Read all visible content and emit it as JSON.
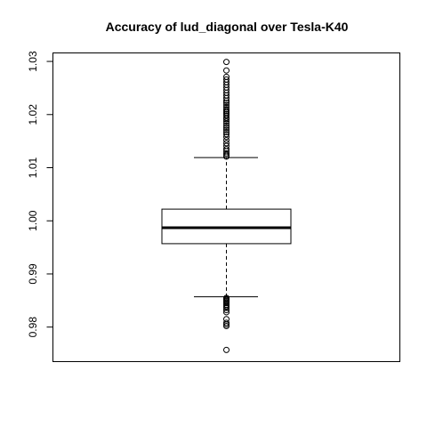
{
  "chart_data": {
    "type": "boxplot",
    "title": "Accuracy of lud_diagonal over Tesla-K40",
    "xlabel": "",
    "ylabel": "",
    "ylim": [
      0.9735,
      1.0316
    ],
    "yticks": [
      0.98,
      0.99,
      1.0,
      1.01,
      1.02,
      1.03
    ],
    "ytick_labels": [
      "0.98",
      "0.99",
      "1.00",
      "1.01",
      "1.02",
      "1.03"
    ],
    "box": {
      "lower_whisker": 0.9857,
      "q1": 0.9957,
      "median": 0.9987,
      "q3": 1.0022,
      "upper_whisker": 1.0119
    },
    "outliers": [
      0.9757,
      0.9802,
      0.9805,
      0.9808,
      0.9815,
      0.9828,
      0.9832,
      0.9836,
      0.9839,
      0.9842,
      0.9845,
      0.9847,
      0.9849,
      0.9851,
      0.9853,
      0.9855,
      1.0121,
      1.0124,
      1.0127,
      1.0131,
      1.0135,
      1.0141,
      1.0146,
      1.0152,
      1.0158,
      1.0163,
      1.0167,
      1.0171,
      1.0175,
      1.0179,
      1.0183,
      1.0187,
      1.0191,
      1.0194,
      1.0198,
      1.0201,
      1.0204,
      1.0207,
      1.021,
      1.0214,
      1.0218,
      1.0222,
      1.0226,
      1.0231,
      1.0236,
      1.0241,
      1.0246,
      1.0251,
      1.0256,
      1.0261,
      1.0266,
      1.0271,
      1.0283,
      1.0299
    ],
    "grid": false,
    "legend": "none"
  }
}
